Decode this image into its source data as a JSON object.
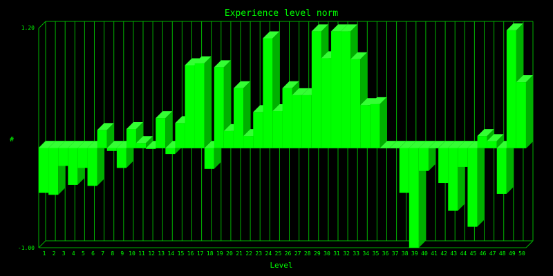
{
  "colors": {
    "background": "#000000",
    "grid": "#00b400",
    "text": "#00ff00",
    "bar_front": "#00ff00",
    "bar_top": "#33ff33",
    "bar_side": "#00b000"
  },
  "chart_data": {
    "type": "bar",
    "style": "3d",
    "title": "Experience level norm",
    "xlabel": "Level",
    "ylabel": "#",
    "ylim": [
      -1.0,
      1.2
    ],
    "y_tick_labels": [
      "1.20",
      "-1.00"
    ],
    "grid": true,
    "categories": [
      "1",
      "2",
      "3",
      "4",
      "5",
      "6",
      "7",
      "8",
      "9",
      "10",
      "11",
      "12",
      "13",
      "14",
      "15",
      "16",
      "17",
      "18",
      "19",
      "20",
      "21",
      "22",
      "23",
      "24",
      "25",
      "26",
      "27",
      "28",
      "29",
      "30",
      "31",
      "32",
      "33",
      "34",
      "35",
      "36",
      "37",
      "38",
      "39",
      "40",
      "41",
      "42",
      "43",
      "44",
      "45",
      "46",
      "47",
      "48",
      "49",
      "50"
    ],
    "values": [
      -0.45,
      -0.47,
      -0.18,
      -0.37,
      -0.2,
      -0.38,
      0.18,
      -0.03,
      -0.2,
      0.19,
      0.05,
      -0.01,
      0.3,
      -0.06,
      0.25,
      0.83,
      0.85,
      -0.21,
      0.81,
      0.17,
      0.6,
      0.12,
      0.36,
      1.1,
      0.37,
      0.6,
      0.53,
      0.53,
      1.17,
      0.9,
      1.17,
      1.17,
      0.89,
      0.43,
      0.44,
      0.0,
      0.0,
      -0.45,
      -1.0,
      -0.23,
      0.0,
      -0.35,
      -0.63,
      -0.19,
      -0.79,
      0.12,
      0.07,
      -0.46,
      1.18,
      0.66
    ]
  }
}
